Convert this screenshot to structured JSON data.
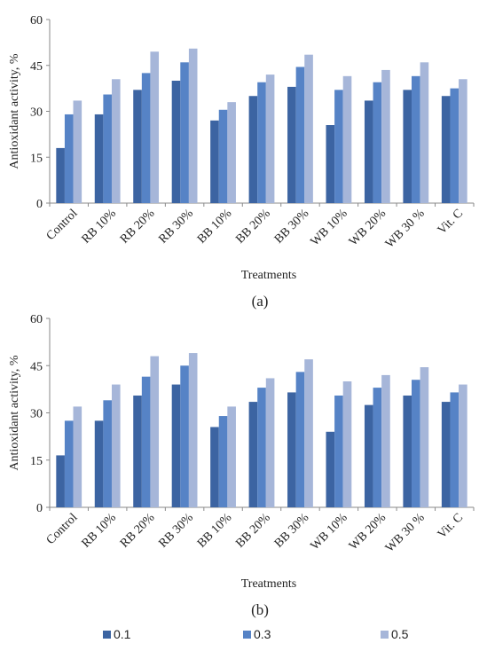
{
  "chart_data": [
    {
      "type": "bar",
      "caption": "(a)",
      "xlabel": "Treatments",
      "ylabel": "Antioxidant activity, %",
      "ylim": [
        0,
        60
      ],
      "yticks": [
        "0",
        "15",
        "30",
        "45",
        "60"
      ],
      "categories": [
        "Control",
        "RB 10%",
        "RB 20%",
        "RB 30%",
        "BB 10%",
        "BB 20%",
        "BB 30%",
        "WB 10%",
        "WB 20%",
        "WB 30 %",
        "Vit. C"
      ],
      "series": [
        {
          "name": "0.1",
          "values": [
            18,
            29,
            37,
            40,
            27,
            35,
            38,
            25.5,
            33.5,
            37,
            35
          ]
        },
        {
          "name": "0.3",
          "values": [
            29,
            35.5,
            42.5,
            46,
            30.5,
            39.5,
            44.5,
            37,
            39.5,
            41.5,
            37.5
          ]
        },
        {
          "name": "0.5",
          "values": [
            33.5,
            40.5,
            49.5,
            50.5,
            33,
            42,
            48.5,
            41.5,
            43.5,
            46,
            40.5
          ]
        }
      ],
      "grid": false
    },
    {
      "type": "bar",
      "caption": "(b)",
      "xlabel": "Treatments",
      "ylabel": "Antioxidant activity, %",
      "ylim": [
        0,
        60
      ],
      "yticks": [
        "0",
        "15",
        "30",
        "45",
        "60"
      ],
      "categories": [
        "Control",
        "RB 10%",
        "RB 20%",
        "RB 30%",
        "BB 10%",
        "BB 20%",
        "BB 30%",
        "WB 10%",
        "WB 20%",
        "WB 30 %",
        "Vit. C"
      ],
      "series": [
        {
          "name": "0.1",
          "values": [
            16.5,
            27.5,
            35.5,
            39,
            25.5,
            33.5,
            36.5,
            24,
            32.5,
            35.5,
            33.5
          ]
        },
        {
          "name": "0.3",
          "values": [
            27.5,
            34,
            41.5,
            45,
            29,
            38,
            43,
            35.5,
            38,
            40.5,
            36.5
          ]
        },
        {
          "name": "0.5",
          "values": [
            32,
            39,
            48,
            49,
            32,
            41,
            47,
            40,
            42,
            44.5,
            39
          ]
        }
      ],
      "grid": false
    }
  ],
  "legend": {
    "placement": "bottom",
    "items": [
      {
        "label": "0.1",
        "color": "#3c64a2"
      },
      {
        "label": "0.3",
        "color": "#5683c6"
      },
      {
        "label": "0.5",
        "color": "#a6b6d9"
      }
    ]
  },
  "colors": {
    "axis": "#8a8a8a",
    "text": "#222222"
  }
}
